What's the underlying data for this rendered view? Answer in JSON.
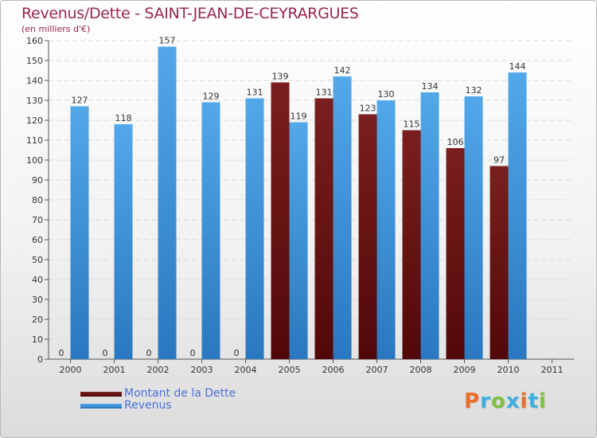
{
  "title": "Revenus/Dette - SAINT-JEAN-DE-CEYRARGUES",
  "subtitle": "(en milliers d'€)",
  "logo": "Proxiti",
  "logo_colors": [
    "#e8702a",
    "#3ab0e2",
    "#7dc242",
    "#3ab0e2",
    "#e8702a",
    "#3ab0e2",
    "#7dc242"
  ],
  "colors": {
    "dette": "#7a1f1f",
    "dette_dark": "#520808",
    "revenus": "#52a8e8",
    "revenus_dark": "#2a78c0",
    "title": "#9a2452",
    "legend_text": "#4a6fd8"
  },
  "chart_data": {
    "type": "bar",
    "categories": [
      "2000",
      "2001",
      "2002",
      "2003",
      "2004",
      "2005",
      "2006",
      "2007",
      "2008",
      "2009",
      "2010",
      "2011"
    ],
    "series": [
      {
        "name": "Montant de la Dette",
        "values": [
          0,
          0,
          0,
          0,
          0,
          139,
          131,
          123,
          115,
          106,
          97,
          null
        ]
      },
      {
        "name": "Revenus",
        "values": [
          127,
          118,
          157,
          129,
          131,
          119,
          142,
          130,
          134,
          132,
          144,
          null
        ]
      }
    ],
    "ylim": [
      0,
      160
    ],
    "yticks": [
      0,
      10,
      20,
      30,
      40,
      50,
      60,
      70,
      80,
      90,
      100,
      110,
      120,
      130,
      140,
      150,
      160
    ],
    "grid": true,
    "legend_position": "bottom-left"
  }
}
